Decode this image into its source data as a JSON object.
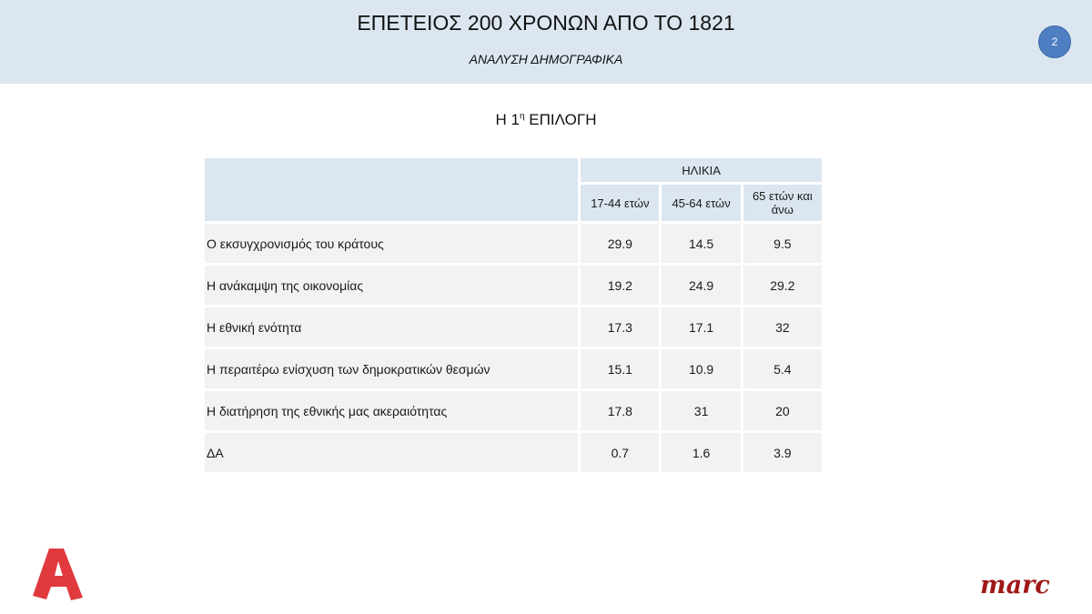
{
  "header": {
    "title": "ΕΠΕΤΕΙΟΣ 200 ΧΡΟΝΩΝ ΑΠΟ ΤΟ 1821",
    "subtitle": "ΑΝΑΛΥΣΗ ΔΗΜΟΓΡΑΦΙΚΑ",
    "page_number": "2"
  },
  "section": {
    "title_pre": "Η 1",
    "title_sup": "η",
    "title_post": " ΕΠΙΛΟΓΗ"
  },
  "table": {
    "group_header": "ΗΛΙΚΙΑ",
    "columns": [
      "17-44 ετών",
      "45-64 ετών",
      "65 ετών και άνω"
    ],
    "rows": [
      {
        "label": "Ο εκσυγχρονισμός του κράτους",
        "values": [
          "29.9",
          "14.5",
          "9.5"
        ]
      },
      {
        "label": "Η ανάκαμψη της οικονομίας",
        "values": [
          "19.2",
          "24.9",
          "29.2"
        ]
      },
      {
        "label": "Η εθνική ενότητα",
        "values": [
          "17.3",
          "17.1",
          "32"
        ]
      },
      {
        "label": "Η περαιτέρω ενίσχυση των δημοκρατικών θεσμών",
        "values": [
          "15.1",
          "10.9",
          "5.4"
        ]
      },
      {
        "label": "Η διατήρηση της εθνικής μας ακεραιότητας",
        "values": [
          "17.8",
          "31",
          "20"
        ]
      },
      {
        "label": "ΔΑ",
        "values": [
          "0.7",
          "1.6",
          "3.9"
        ]
      }
    ]
  },
  "logos": {
    "left": "alpha-logo",
    "right_text": "marc"
  },
  "colors": {
    "header_band": "#dce6f1",
    "badge": "#4e7fc2",
    "row_bg": "#f2f2f2",
    "alpha_red": "#e03a3e",
    "marc_red": "#a01818"
  }
}
